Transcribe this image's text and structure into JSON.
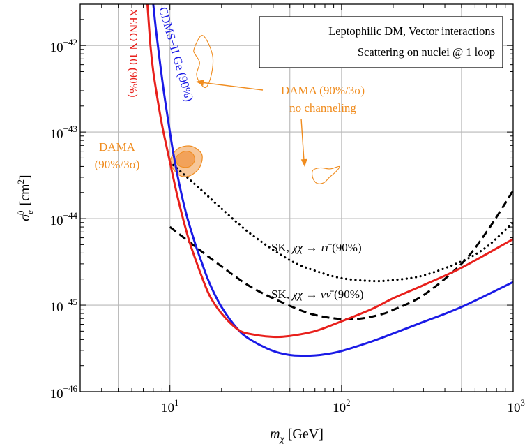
{
  "chart_data": {
    "type": "line",
    "xscale": "log",
    "yscale": "log",
    "xlim": [
      3,
      1000
    ],
    "ylim": [
      1e-46,
      3e-42
    ],
    "grid": true,
    "xlabel": "m_χ [GeV]",
    "ylabel": "σ_e^0 [cm^2]",
    "xticks": [
      {
        "value": 10,
        "base": "10",
        "exp": "1"
      },
      {
        "value": 100,
        "base": "10",
        "exp": "2"
      },
      {
        "value": 1000,
        "base": "10",
        "exp": "3"
      }
    ],
    "yticks": [
      {
        "value": 1e-42,
        "base": "10",
        "exp": "−42"
      },
      {
        "value": 1e-43,
        "base": "10",
        "exp": "−43"
      },
      {
        "value": 1e-44,
        "base": "10",
        "exp": "−44"
      },
      {
        "value": 1e-45,
        "base": "10",
        "exp": "−45"
      },
      {
        "value": 1e-46,
        "base": "10",
        "exp": "−46"
      }
    ],
    "legend_box": {
      "placement": "top-right",
      "lines": [
        "Leptophilic DM, Vector interactions",
        "Scattering on nuclei @ 1 loop"
      ]
    },
    "series": [
      {
        "name": "XENON 10 (90%)",
        "color": "#e8201c",
        "style": "solid",
        "x": [
          7.4,
          7.7,
          8.0,
          8.5,
          9.0,
          9.5,
          10,
          11,
          12,
          13,
          14,
          15,
          17,
          20,
          25,
          30,
          40,
          50,
          70,
          100,
          150,
          200,
          300,
          500,
          1000
        ],
        "y": [
          3e-42,
          1e-42,
          5e-43,
          2.3e-43,
          1.2e-43,
          7.2e-44,
          4.5e-44,
          1.9e-44,
          9.5e-45,
          5.4e-45,
          3.5e-45,
          2.4e-45,
          1.3e-45,
          8e-46,
          5.2e-46,
          4.6e-46,
          4.3e-46,
          4.4e-46,
          5e-46,
          6.5e-46,
          9e-46,
          1.2e-45,
          1.7e-45,
          2.7e-45,
          5.8e-45
        ]
      },
      {
        "name": "CDMS−II Ge (90%)",
        "color": "#1a1ae6",
        "style": "solid",
        "x": [
          8.0,
          8.3,
          8.7,
          9.2,
          9.8,
          10.5,
          11.5,
          12.5,
          14,
          15,
          17,
          20,
          25,
          30,
          40,
          50,
          60,
          70,
          80,
          100,
          150,
          200,
          300,
          500,
          1000
        ],
        "y": [
          3e-42,
          1.5e-42,
          7e-43,
          3e-43,
          1.3e-43,
          5.5e-44,
          2.2e-44,
          1.1e-44,
          5.2e-45,
          3.5e-45,
          1.8e-45,
          9.5e-46,
          5.2e-46,
          3.9e-46,
          2.95e-46,
          2.65e-46,
          2.6e-46,
          2.62e-46,
          2.7e-46,
          2.95e-46,
          3.8e-46,
          4.7e-46,
          6.4e-46,
          9.5e-46,
          1.85e-45
        ]
      },
      {
        "name": "SK, χχ → ττ̄ (90%)",
        "color": "#000000",
        "style": "dotted",
        "x": [
          10,
          15,
          20,
          30,
          50,
          70,
          100,
          150,
          200,
          300,
          500,
          700,
          1000
        ],
        "y": [
          4.5e-44,
          2.2e-44,
          1.3e-44,
          6.5e-45,
          3.3e-45,
          2.5e-45,
          2.05e-45,
          1.9e-45,
          1.95e-45,
          2.2e-45,
          3.2e-45,
          4.7e-45,
          9e-45
        ]
      },
      {
        "name": "SK, χχ → νν̄ (90%)",
        "color": "#000000",
        "style": "dashed",
        "x": [
          10,
          15,
          20,
          30,
          50,
          70,
          100,
          130,
          170,
          200,
          300,
          500,
          700,
          1000
        ],
        "y": [
          8e-45,
          4.3e-45,
          2.8e-45,
          1.6e-45,
          9.8e-46,
          7.7e-46,
          6.9e-46,
          7e-46,
          7.8e-46,
          8.8e-46,
          1.3e-45,
          3e-45,
          7e-45,
          2.1e-44
        ]
      }
    ],
    "regions": [
      {
        "label_lines": [
          "DAMA",
          "(90%/3σ)"
        ],
        "color": "#f08c1e",
        "outer": [
          [
            10.1,
            4.8e-44
          ],
          [
            11.0,
            6.3e-44
          ],
          [
            12.5,
            6.9e-44
          ],
          [
            14.0,
            6.6e-44
          ],
          [
            15.4,
            5.4e-44
          ],
          [
            14.9,
            3.9e-44
          ],
          [
            13.2,
            3.15e-44
          ],
          [
            11.6,
            3.1e-44
          ],
          [
            10.4,
            3.8e-44
          ]
        ],
        "inner": [
          [
            11.0,
            5.3e-44
          ],
          [
            12.3,
            6e-44
          ],
          [
            13.6,
            5.6e-44
          ],
          [
            13.9,
            4.6e-44
          ],
          [
            12.9,
            3.95e-44
          ],
          [
            11.5,
            4e-44
          ],
          [
            10.9,
            4.5e-44
          ]
        ]
      },
      {
        "label_lines": [
          "DAMA (90%/3σ)",
          "no channeling"
        ],
        "color": "#f08c1e",
        "outer_a": [
          [
            13.8,
            9e-43
          ],
          [
            15.2,
            1.3e-42
          ],
          [
            16.6,
            1.1e-42
          ],
          [
            17.8,
            7.2e-43
          ],
          [
            17.4,
            4.5e-43
          ],
          [
            16.3,
            3.3e-43
          ],
          [
            15.2,
            3.55e-43
          ],
          [
            14.3,
            4.6e-43
          ],
          [
            14.9,
            6.3e-43
          ],
          [
            14.1,
            7.8e-43
          ]
        ],
        "outer_b": [
          [
            68,
            3.6e-44
          ],
          [
            75,
            3.85e-44
          ],
          [
            86,
            3.75e-44
          ],
          [
            97,
            4e-44
          ],
          [
            93,
            3.5e-44
          ],
          [
            85,
            3e-44
          ],
          [
            79,
            2.6e-44
          ],
          [
            72,
            2.55e-44
          ],
          [
            68,
            2.95e-44
          ]
        ]
      }
    ]
  }
}
